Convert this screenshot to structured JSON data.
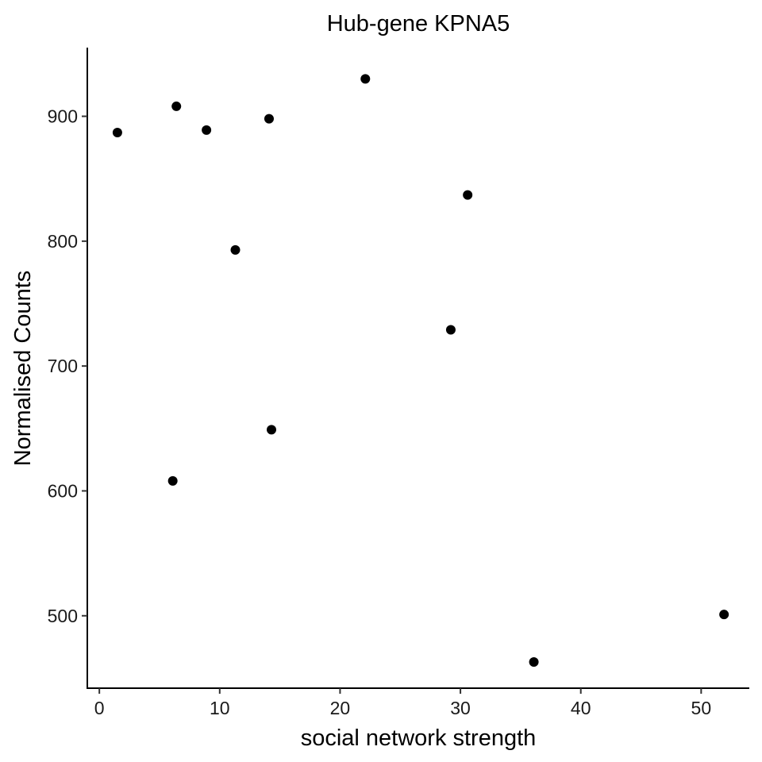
{
  "chart_data": {
    "type": "scatter",
    "title": "Hub-gene KPNA5",
    "xlabel": "social network strength",
    "ylabel": "Normalised Counts",
    "xlim": [
      -1,
      54
    ],
    "ylim": [
      442,
      955
    ],
    "xticks": [
      0,
      10,
      20,
      30,
      40,
      50
    ],
    "yticks": [
      500,
      600,
      700,
      800,
      900
    ],
    "grid": false,
    "legend": "none",
    "point_color": "#000000",
    "points": [
      {
        "x": 1.5,
        "y": 887
      },
      {
        "x": 6.1,
        "y": 608
      },
      {
        "x": 6.4,
        "y": 908
      },
      {
        "x": 8.9,
        "y": 889
      },
      {
        "x": 11.3,
        "y": 793
      },
      {
        "x": 14.1,
        "y": 898
      },
      {
        "x": 14.3,
        "y": 649
      },
      {
        "x": 22.1,
        "y": 930
      },
      {
        "x": 29.2,
        "y": 729
      },
      {
        "x": 30.6,
        "y": 837
      },
      {
        "x": 36.1,
        "y": 463
      },
      {
        "x": 51.9,
        "y": 501
      }
    ]
  }
}
